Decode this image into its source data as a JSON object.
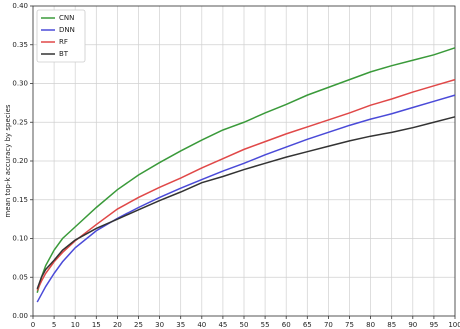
{
  "chart_data": {
    "type": "line",
    "y_label": "mean top-k accuracy by species",
    "x": [
      1,
      2,
      3,
      5,
      7,
      10,
      15,
      20,
      25,
      30,
      35,
      40,
      45,
      50,
      55,
      60,
      65,
      70,
      75,
      80,
      85,
      90,
      95,
      100
    ],
    "series": [
      {
        "name": "CNN",
        "color": "#3a9a3a",
        "values": [
          0.03,
          0.05,
          0.065,
          0.085,
          0.1,
          0.115,
          0.14,
          0.163,
          0.182,
          0.198,
          0.213,
          0.227,
          0.24,
          0.25,
          0.262,
          0.273,
          0.285,
          0.295,
          0.305,
          0.315,
          0.323,
          0.33,
          0.337,
          0.346
        ]
      },
      {
        "name": "DNN",
        "color": "#4a4ad8",
        "values": [
          0.018,
          0.028,
          0.038,
          0.055,
          0.07,
          0.088,
          0.11,
          0.126,
          0.14,
          0.153,
          0.165,
          0.176,
          0.187,
          0.197,
          0.208,
          0.218,
          0.228,
          0.237,
          0.246,
          0.254,
          0.261,
          0.269,
          0.277,
          0.285
        ]
      },
      {
        "name": "RF",
        "color": "#e04848",
        "values": [
          0.033,
          0.045,
          0.055,
          0.07,
          0.082,
          0.097,
          0.118,
          0.138,
          0.153,
          0.166,
          0.178,
          0.191,
          0.203,
          0.215,
          0.225,
          0.235,
          0.244,
          0.253,
          0.262,
          0.272,
          0.28,
          0.289,
          0.297,
          0.305
        ]
      },
      {
        "name": "BT",
        "color": "#333333",
        "values": [
          0.035,
          0.05,
          0.06,
          0.072,
          0.085,
          0.098,
          0.113,
          0.125,
          0.137,
          0.149,
          0.16,
          0.172,
          0.18,
          0.189,
          0.197,
          0.205,
          0.212,
          0.219,
          0.226,
          0.232,
          0.237,
          0.243,
          0.25,
          0.257
        ]
      }
    ],
    "xlim": [
      0,
      100
    ],
    "xticks": [
      0,
      5,
      10,
      15,
      20,
      25,
      30,
      35,
      40,
      45,
      50,
      55,
      60,
      65,
      70,
      75,
      80,
      85,
      90,
      95,
      100
    ],
    "ylim": [
      0,
      0.4
    ],
    "yticks": [
      {
        "value": 0,
        "label": "0.00"
      },
      {
        "value": 0.05,
        "label": "0.05"
      },
      {
        "value": 0.1,
        "label": "0.10"
      },
      {
        "value": 0.15,
        "label": "0.15"
      },
      {
        "value": 0.2,
        "label": "0.20"
      },
      {
        "value": 0.25,
        "label": "0.25"
      },
      {
        "value": 0.3,
        "label": "0.30"
      },
      {
        "value": 0.35,
        "label": "0.35"
      },
      {
        "value": 0.4,
        "label": "0.40"
      }
    ],
    "grid": true,
    "legend": "upper-left"
  }
}
